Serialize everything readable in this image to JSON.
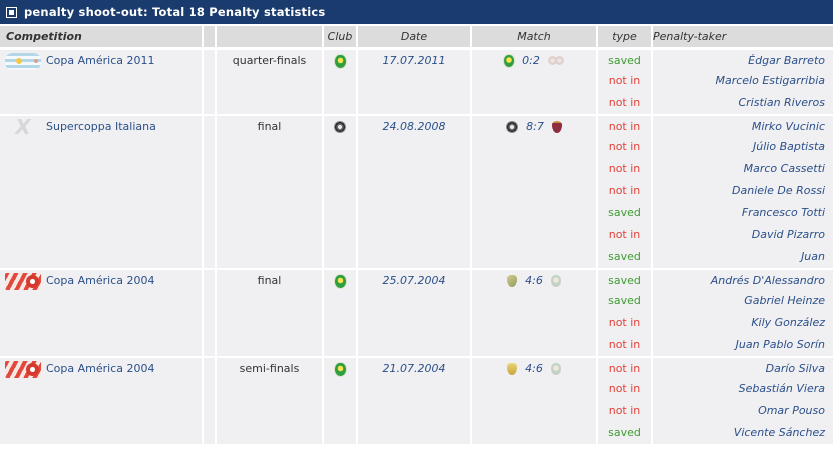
{
  "title_bar": {
    "title": "penalty shoot-out: Total 18 Penalty statistics"
  },
  "table": {
    "headers": {
      "competition": "Competition",
      "club": "Club",
      "date": "Date",
      "match": "Match",
      "type": "type",
      "taker": "Penalty-taker"
    },
    "colors": {
      "title_bar_bg": "#1a3b6d",
      "header_row_bg": "#dcdcdd",
      "row_bg": "#f0f0f2",
      "link_navy": "#2a4f8a",
      "saved_green": "#3f9c30",
      "not_in_red": "#e24138"
    },
    "groups": [
      {
        "competition": "Copa América 2011",
        "logo": "copa-america-2011-logo",
        "stage": "quarter-finals",
        "club_badge": "cbf-badge",
        "date": "17.07.2011",
        "match": {
          "score": "0:2",
          "left_badge": "cbf-badge",
          "right_badge": "faded-pair-badge"
        },
        "rows": [
          {
            "type": "saved",
            "taker": "Édgar Barreto"
          },
          {
            "type": "not in",
            "taker": "Marcelo Estigarribia"
          },
          {
            "type": "not in",
            "taker": "Cristian Riveros"
          }
        ]
      },
      {
        "competition": "Supercoppa Italiana",
        "logo": "supercoppa-italiana-logo",
        "stage": "final",
        "club_badge": "inter-badge",
        "date": "24.08.2008",
        "match": {
          "score": "8:7",
          "left_badge": "inter-badge",
          "right_badge": "roma-badge"
        },
        "rows": [
          {
            "type": "not in",
            "taker": "Mirko Vucinic"
          },
          {
            "type": "not in",
            "taker": "Júlio Baptista"
          },
          {
            "type": "not in",
            "taker": "Marco Cassetti"
          },
          {
            "type": "not in",
            "taker": "Daniele De Rossi"
          },
          {
            "type": "saved",
            "taker": "Francesco Totti"
          },
          {
            "type": "not in",
            "taker": "David Pizarro"
          },
          {
            "type": "saved",
            "taker": "Juan"
          }
        ]
      },
      {
        "competition": "Copa América 2004",
        "logo": "copa-america-2004-logo",
        "stage": "final",
        "club_badge": "cbf-badge",
        "date": "25.07.2004",
        "match": {
          "score": "4:6",
          "left_badge": "afa-badge",
          "right_badge": "cbf-faded-badge"
        },
        "rows": [
          {
            "type": "saved",
            "taker": "Andrés D'Alessandro"
          },
          {
            "type": "saved",
            "taker": "Gabriel Heinze"
          },
          {
            "type": "not in",
            "taker": "Kily González"
          },
          {
            "type": "not in",
            "taker": "Juan Pablo Sorín"
          }
        ]
      },
      {
        "competition": "Copa América 2004",
        "logo": "copa-america-2004-logo",
        "stage": "semi-finals",
        "club_badge": "cbf-badge",
        "date": "21.07.2004",
        "match": {
          "score": "4:6",
          "left_badge": "uruguay-badge",
          "right_badge": "cbf-faded-badge"
        },
        "rows": [
          {
            "type": "not in",
            "taker": "Darío Silva"
          },
          {
            "type": "not in",
            "taker": "Sebastián Viera"
          },
          {
            "type": "not in",
            "taker": "Omar Pouso"
          },
          {
            "type": "saved",
            "taker": "Vicente Sánchez"
          }
        ]
      }
    ]
  }
}
